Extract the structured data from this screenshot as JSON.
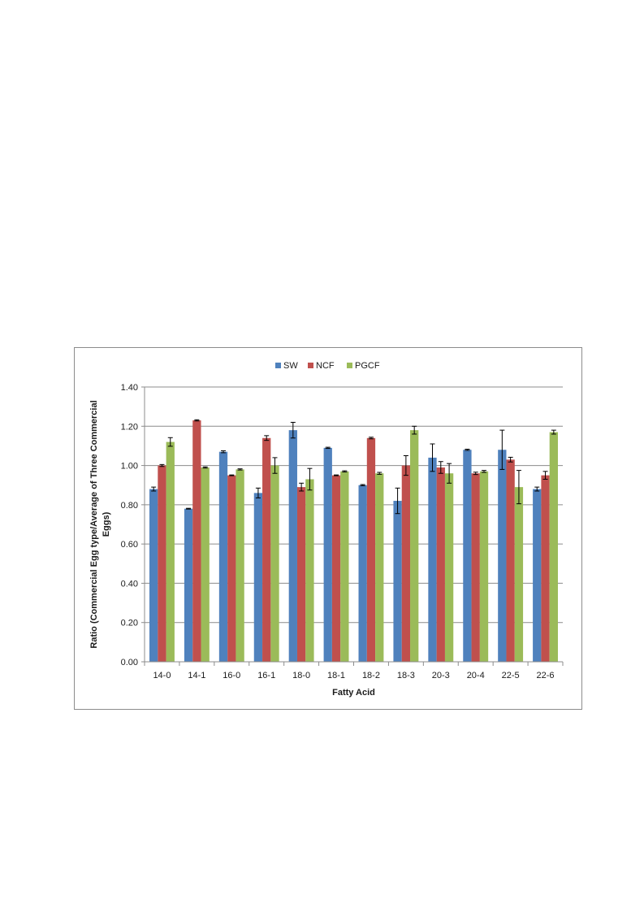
{
  "chart_data": {
    "type": "bar",
    "title": "",
    "xlabel": "Fatty Acid",
    "ylabel_lines": [
      "Ratio (Commercial Egg type/Average of Three Commercial",
      "Eggs)"
    ],
    "ylim": [
      0,
      1.4
    ],
    "yticks": [
      "0.00",
      "0.20",
      "0.40",
      "0.60",
      "0.80",
      "1.00",
      "1.20",
      "1.40"
    ],
    "grid": true,
    "legend_position": "top-center",
    "categories": [
      "14-0",
      "14-1",
      "16-0",
      "16-1",
      "18-0",
      "18-1",
      "18-2",
      "18-3",
      "20-3",
      "20-4",
      "22-5",
      "22-6"
    ],
    "series": [
      {
        "name": "SW",
        "color": "#4f81bd",
        "values": [
          0.88,
          0.78,
          1.07,
          0.86,
          1.18,
          1.09,
          0.9,
          0.82,
          1.04,
          1.08,
          1.08,
          0.88
        ],
        "errors": [
          0.01,
          0.002,
          0.005,
          0.025,
          0.04,
          0.003,
          0.003,
          0.065,
          0.07,
          0.003,
          0.1,
          0.01
        ]
      },
      {
        "name": "NCF",
        "color": "#c0504d",
        "values": [
          1.0,
          1.23,
          0.95,
          1.14,
          0.89,
          0.95,
          1.14,
          1.0,
          0.99,
          0.96,
          1.03,
          0.95
        ],
        "errors": [
          0.005,
          0.003,
          0.002,
          0.012,
          0.02,
          0.002,
          0.004,
          0.05,
          0.03,
          0.006,
          0.012,
          0.02
        ]
      },
      {
        "name": "PGCF",
        "color": "#9bbb59",
        "values": [
          1.12,
          0.99,
          0.98,
          1.0,
          0.93,
          0.97,
          0.96,
          1.18,
          0.96,
          0.97,
          0.89,
          1.17
        ],
        "errors": [
          0.022,
          0.003,
          0.003,
          0.04,
          0.055,
          0.003,
          0.005,
          0.02,
          0.05,
          0.005,
          0.085,
          0.01
        ]
      }
    ]
  }
}
